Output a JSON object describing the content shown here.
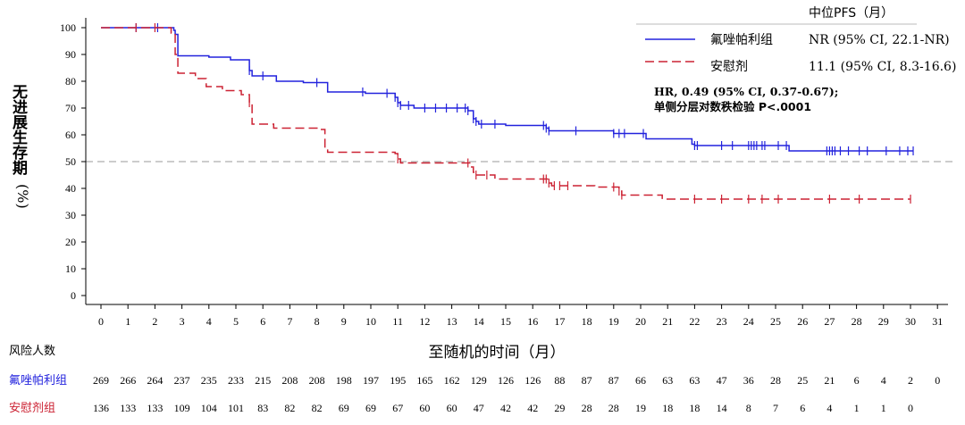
{
  "chart_data": {
    "type": "line",
    "title": "",
    "xlabel": "至随机的时间（月）",
    "ylabel": "无进展生存期",
    "ylabel_unit": "(%)",
    "xlim": [
      0,
      31
    ],
    "ylim": [
      0,
      100
    ],
    "xticks": [
      0,
      1,
      2,
      3,
      4,
      5,
      6,
      7,
      8,
      9,
      10,
      11,
      12,
      13,
      14,
      15,
      16,
      17,
      18,
      19,
      20,
      21,
      22,
      23,
      24,
      25,
      26,
      27,
      28,
      29,
      30,
      31
    ],
    "yticks": [
      0,
      10,
      20,
      30,
      40,
      50,
      60,
      70,
      80,
      90,
      100
    ],
    "reference_line": {
      "y": 50,
      "style": "dashed",
      "color": "#999999"
    },
    "legend": {
      "header": "中位PFS（月）",
      "placement": "top-right",
      "entries": [
        {
          "label": "氟唑帕利组",
          "median": "NR (95% CI, 22.1-NR)"
        },
        {
          "label": "安慰剂",
          "median": "11.1 (95% CI, 8.3-16.6)"
        }
      ]
    },
    "annotation": {
      "line1": "HR, 0.49 (95% CI, 0.37-0.67);",
      "line2": "单侧分层对数秩检验  P<.0001"
    },
    "series": [
      {
        "name": "氟唑帕利组",
        "color": "#2222dd",
        "line_style": "solid",
        "steps": [
          [
            0,
            100
          ],
          [
            2.7,
            99
          ],
          [
            2.75,
            97.5
          ],
          [
            2.85,
            89.5
          ],
          [
            4,
            89
          ],
          [
            4.8,
            88
          ],
          [
            5.5,
            84
          ],
          [
            5.6,
            82
          ],
          [
            6.5,
            80
          ],
          [
            7.5,
            79.5
          ],
          [
            8.4,
            76
          ],
          [
            9.8,
            75.5
          ],
          [
            10.9,
            74
          ],
          [
            11,
            72
          ],
          [
            11.1,
            71
          ],
          [
            11.6,
            70
          ],
          [
            13.6,
            69
          ],
          [
            13.8,
            66
          ],
          [
            13.9,
            65
          ],
          [
            14,
            64
          ],
          [
            15,
            63.5
          ],
          [
            16.5,
            62.5
          ],
          [
            16.6,
            61.5
          ],
          [
            19,
            60.5
          ],
          [
            20.2,
            58.5
          ],
          [
            21.9,
            56.5
          ],
          [
            22,
            56
          ],
          [
            25.5,
            54
          ],
          [
            30.1,
            54
          ]
        ],
        "censors": [
          1.3,
          2.1,
          5.5,
          6,
          8,
          9.7,
          10.6,
          10.9,
          11,
          11.1,
          11.4,
          12,
          12.4,
          12.8,
          13.2,
          13.5,
          13.6,
          13.8,
          13.9,
          14.1,
          14.6,
          16.4,
          16.5,
          16.6,
          17.6,
          19,
          19.2,
          19.4,
          20.1,
          22,
          22.1,
          23,
          23.4,
          24,
          24.1,
          24.2,
          24.3,
          24.5,
          24.6,
          25.1,
          25.4,
          26.9,
          27,
          27.1,
          27.2,
          27.4,
          27.7,
          28.1,
          28.4,
          29.1,
          29.6,
          29.9,
          30.1
        ],
        "at_risk": [
          269,
          266,
          264,
          237,
          235,
          233,
          215,
          208,
          208,
          198,
          197,
          195,
          165,
          162,
          129,
          126,
          126,
          88,
          87,
          87,
          66,
          63,
          63,
          47,
          36,
          28,
          25,
          21,
          6,
          4,
          2,
          0
        ]
      },
      {
        "name": "安慰剂",
        "color": "#cc2233",
        "line_style": "dashed",
        "steps": [
          [
            0,
            100
          ],
          [
            2.6,
            98
          ],
          [
            2.75,
            90
          ],
          [
            2.85,
            83
          ],
          [
            3.5,
            81
          ],
          [
            3.9,
            78
          ],
          [
            4.5,
            76.5
          ],
          [
            5.2,
            75
          ],
          [
            5.5,
            72
          ],
          [
            5.6,
            64
          ],
          [
            6.4,
            62.5
          ],
          [
            8.1,
            62
          ],
          [
            8.3,
            55
          ],
          [
            8.4,
            53.5
          ],
          [
            10.9,
            53
          ],
          [
            11,
            51
          ],
          [
            11.1,
            49.5
          ],
          [
            13.7,
            48
          ],
          [
            13.8,
            46
          ],
          [
            13.9,
            45
          ],
          [
            14.6,
            43.5
          ],
          [
            16.6,
            42
          ],
          [
            16.7,
            41
          ],
          [
            18.3,
            40.5
          ],
          [
            19.2,
            39
          ],
          [
            19.3,
            37.5
          ],
          [
            20.8,
            36
          ],
          [
            30,
            36
          ]
        ],
        "censors": [
          1.3,
          2,
          5.5,
          11,
          13.6,
          13.9,
          14.3,
          16.4,
          16.5,
          16.6,
          16.8,
          17,
          17.3,
          19,
          19.2,
          19.3,
          22,
          23,
          24,
          24.5,
          25.1,
          27,
          28.1,
          30
        ],
        "at_risk": [
          136,
          133,
          133,
          109,
          104,
          101,
          83,
          82,
          82,
          69,
          69,
          67,
          60,
          60,
          47,
          42,
          42,
          29,
          28,
          28,
          19,
          18,
          18,
          14,
          8,
          7,
          6,
          4,
          1,
          1,
          0
        ]
      }
    ]
  },
  "risk_table": {
    "title": "风险人数",
    "rows": [
      {
        "label": "氟唑帕利组",
        "color": "#2222dd",
        "values": [
          "269",
          "266",
          "264",
          "237",
          "235",
          "233",
          "215",
          "208",
          "208",
          "198",
          "197",
          "195",
          "165",
          "162",
          "129",
          "126",
          "126",
          "88",
          "87",
          "87",
          "66",
          "63",
          "63",
          "47",
          "36",
          "28",
          "25",
          "21",
          "6",
          "4",
          "2",
          "0"
        ]
      },
      {
        "label": "安慰剂组",
        "color": "#cc2233",
        "values": [
          "136",
          "133",
          "133",
          "109",
          "104",
          "101",
          "83",
          "82",
          "82",
          "69",
          "69",
          "67",
          "60",
          "60",
          "47",
          "42",
          "42",
          "29",
          "28",
          "28",
          "19",
          "18",
          "18",
          "14",
          "8",
          "7",
          "6",
          "4",
          "1",
          "1",
          "0"
        ]
      }
    ]
  }
}
